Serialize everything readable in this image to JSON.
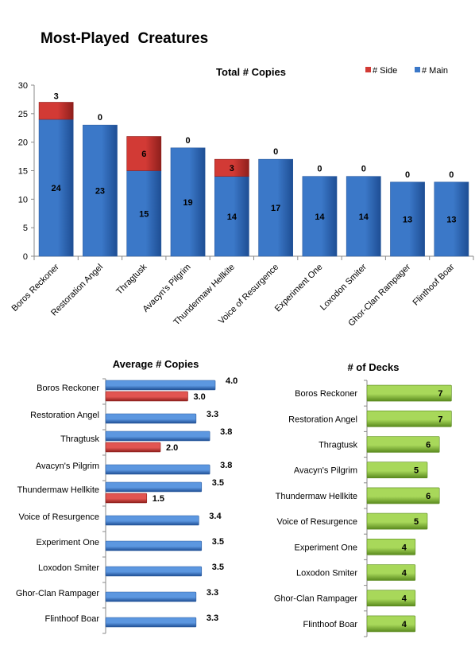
{
  "page_title": "Most-Played  Creatures",
  "colors": {
    "main": "#3B78C8",
    "main_dark": "#1E4E94",
    "side": "#D23A35",
    "side_dark": "#8E1F1C",
    "decks": "#8CC43C",
    "decks_dark": "#5A8A1E"
  },
  "chart_data": [
    {
      "type": "bar",
      "stacked": true,
      "title": "Total # Copies",
      "categories": [
        "Boros Reckoner",
        "Restoration Angel",
        "Thragtusk",
        "Avacyn's Pilgrim",
        "Thundermaw Hellkite",
        "Voice of Resurgence",
        "Experiment One",
        "Loxodon Smiter",
        "Ghor-Clan Rampager",
        "Flinthoof Boar"
      ],
      "series": [
        {
          "name": "# Main",
          "values": [
            24,
            23,
            15,
            19,
            14,
            17,
            14,
            14,
            13,
            13
          ]
        },
        {
          "name": "# Side",
          "values": [
            3,
            0,
            6,
            0,
            3,
            0,
            0,
            0,
            0,
            0
          ]
        }
      ],
      "ylim": [
        0,
        30
      ],
      "yticks": [
        "0",
        "5",
        "10",
        "15",
        "20",
        "25",
        "30"
      ],
      "legend": "top-right",
      "legend_order": [
        "# Side",
        "# Main"
      ]
    },
    {
      "type": "bar",
      "orientation": "horizontal",
      "title": "Average # Copies",
      "categories": [
        "Boros Reckoner",
        "Restoration Angel",
        "Thragtusk",
        "Avacyn's Pilgrim",
        "Thundermaw Hellkite",
        "Voice of Resurgence",
        "Experiment One",
        "Loxodon Smiter",
        "Ghor-Clan Rampager",
        "Flinthoof Boar"
      ],
      "series": [
        {
          "values": [
            4.0,
            3.3,
            3.8,
            3.8,
            3.5,
            3.4,
            3.5,
            3.5,
            3.3,
            3.3
          ],
          "labels": [
            "4.0",
            "3.3",
            "3.8",
            "3.8",
            "3.5",
            "3.4",
            "3.5",
            "3.5",
            "3.3",
            "3.3"
          ]
        },
        {
          "values": [
            3.0,
            null,
            2.0,
            null,
            1.5,
            null,
            null,
            null,
            null,
            null
          ],
          "labels": [
            "3.0",
            "",
            "2.0",
            "",
            "1.5",
            "",
            "",
            "",
            "",
            ""
          ]
        }
      ],
      "xlim": [
        0,
        4.5
      ]
    },
    {
      "type": "bar",
      "orientation": "horizontal",
      "title": "# of Decks",
      "categories": [
        "Boros Reckoner",
        "Restoration Angel",
        "Thragtusk",
        "Avacyn's Pilgrim",
        "Thundermaw Hellkite",
        "Voice of Resurgence",
        "Experiment One",
        "Loxodon Smiter",
        "Ghor-Clan Rampager",
        "Flinthoof Boar"
      ],
      "values": [
        7,
        7,
        6,
        5,
        6,
        5,
        4,
        4,
        4,
        4
      ],
      "xlim": [
        0,
        8
      ]
    }
  ]
}
